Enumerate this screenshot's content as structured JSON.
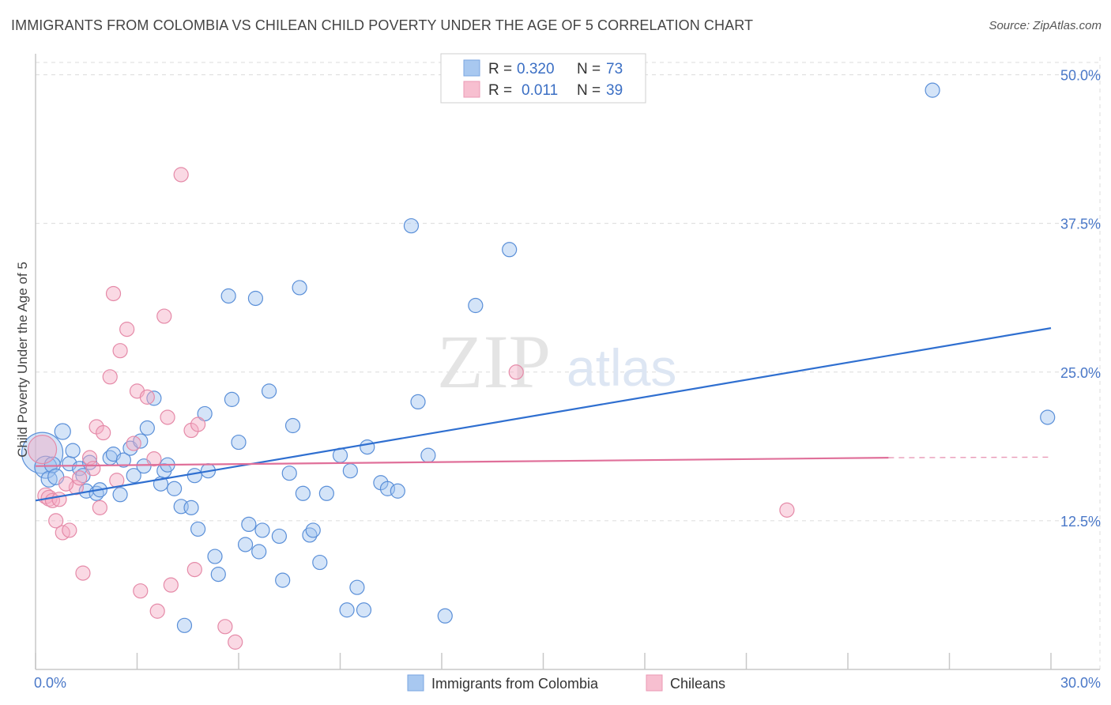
{
  "title": "IMMIGRANTS FROM COLOMBIA VS CHILEAN CHILD POVERTY UNDER THE AGE OF 5 CORRELATION CHART",
  "source": "Source: ZipAtlas.com",
  "watermark": {
    "zip": "ZIP",
    "atlas": "atlas"
  },
  "chart_data": {
    "type": "scatter",
    "title": "IMMIGRANTS FROM COLOMBIA VS CHILEAN CHILD POVERTY UNDER THE AGE OF 5 CORRELATION CHART",
    "xlabel": "",
    "ylabel": "Child Poverty Under the Age of 5",
    "xlim": [
      0,
      30
    ],
    "ylim": [
      0,
      51.5
    ],
    "x_tick_labels": [
      "0.0%",
      "30.0%"
    ],
    "y_ticks": [
      12.5,
      25.0,
      37.5,
      50.0
    ],
    "y_tick_labels": [
      "12.5%",
      "25.0%",
      "37.5%",
      "50.0%"
    ],
    "grid": true,
    "legend": [
      {
        "r_label": "R =",
        "r_value": "0.320",
        "n_label": "N =",
        "n_value": "73",
        "color": "#a8c8f0"
      },
      {
        "r_label": "R =",
        "r_value": "0.011",
        "n_label": "N =",
        "n_value": "39",
        "color": "#f7bfd0"
      }
    ],
    "series": [
      {
        "name": "Immigrants from Colombia",
        "color": "#5a8fd8",
        "trend": {
          "x": [
            0,
            30
          ],
          "y": [
            14.2,
            28.7
          ],
          "color": "#2f6fd0"
        },
        "points": [
          [
            0.2,
            18.2
          ],
          [
            0.3,
            17.0
          ],
          [
            0.4,
            16.0
          ],
          [
            0.5,
            17.2
          ],
          [
            0.6,
            16.2
          ],
          [
            0.8,
            20.0
          ],
          [
            1.0,
            17.3
          ],
          [
            1.1,
            18.4
          ],
          [
            1.3,
            16.9
          ],
          [
            1.4,
            16.3
          ],
          [
            1.5,
            15.0
          ],
          [
            1.6,
            17.4
          ],
          [
            1.8,
            14.8
          ],
          [
            1.9,
            15.1
          ],
          [
            2.2,
            17.8
          ],
          [
            2.3,
            18.1
          ],
          [
            2.5,
            14.7
          ],
          [
            2.6,
            17.6
          ],
          [
            2.8,
            18.6
          ],
          [
            2.9,
            16.3
          ],
          [
            3.1,
            19.2
          ],
          [
            3.2,
            17.1
          ],
          [
            3.3,
            20.3
          ],
          [
            3.5,
            22.8
          ],
          [
            3.7,
            15.6
          ],
          [
            3.8,
            16.7
          ],
          [
            3.9,
            17.2
          ],
          [
            4.1,
            15.2
          ],
          [
            4.3,
            13.7
          ],
          [
            4.4,
            3.7
          ],
          [
            4.6,
            13.6
          ],
          [
            4.7,
            16.3
          ],
          [
            4.8,
            11.8
          ],
          [
            5.0,
            21.5
          ],
          [
            5.1,
            16.7
          ],
          [
            5.3,
            9.5
          ],
          [
            5.4,
            8.0
          ],
          [
            5.7,
            31.4
          ],
          [
            5.8,
            22.7
          ],
          [
            6.0,
            19.1
          ],
          [
            6.2,
            10.5
          ],
          [
            6.3,
            12.2
          ],
          [
            6.5,
            31.2
          ],
          [
            6.6,
            9.9
          ],
          [
            6.7,
            11.7
          ],
          [
            6.9,
            23.4
          ],
          [
            7.2,
            11.2
          ],
          [
            7.3,
            7.5
          ],
          [
            7.5,
            16.5
          ],
          [
            7.6,
            20.5
          ],
          [
            7.8,
            32.1
          ],
          [
            7.9,
            14.8
          ],
          [
            8.1,
            11.3
          ],
          [
            8.2,
            11.7
          ],
          [
            8.4,
            9.0
          ],
          [
            8.6,
            14.8
          ],
          [
            9.0,
            18.0
          ],
          [
            9.2,
            5.0
          ],
          [
            9.3,
            16.7
          ],
          [
            9.5,
            6.9
          ],
          [
            9.7,
            5.0
          ],
          [
            9.8,
            18.7
          ],
          [
            10.2,
            15.7
          ],
          [
            10.4,
            15.2
          ],
          [
            10.7,
            15.0
          ],
          [
            11.1,
            37.3
          ],
          [
            11.3,
            22.5
          ],
          [
            11.6,
            18.0
          ],
          [
            12.1,
            4.5
          ],
          [
            13.0,
            30.6
          ],
          [
            14.0,
            35.3
          ],
          [
            26.5,
            48.7
          ],
          [
            29.9,
            21.2
          ]
        ],
        "radii": [
          26,
          14,
          10,
          10,
          10,
          10,
          9,
          9,
          9,
          9,
          9,
          9,
          9,
          9,
          9,
          9,
          9,
          9,
          9,
          9,
          9,
          9,
          9,
          9,
          9,
          9,
          9,
          9,
          9,
          9,
          9,
          9,
          9,
          9,
          9,
          9,
          9,
          9,
          9,
          9,
          9,
          9,
          9,
          9,
          9,
          9,
          9,
          9,
          9,
          9,
          9,
          9,
          9,
          9,
          9,
          9,
          9,
          9,
          9,
          9,
          9,
          9,
          9,
          9,
          9,
          9,
          9,
          9,
          9,
          9,
          9,
          9,
          9
        ]
      },
      {
        "name": "Chileans",
        "color": "#e58aa8",
        "trend": {
          "x": [
            0,
            25.2
          ],
          "y": [
            17.1,
            17.8
          ],
          "dashed_to": 30,
          "dashed_y": 17.85,
          "color": "#e0709a"
        },
        "points": [
          [
            0.2,
            18.5
          ],
          [
            0.3,
            14.6
          ],
          [
            0.4,
            14.4
          ],
          [
            0.5,
            14.2
          ],
          [
            0.6,
            12.5
          ],
          [
            0.7,
            14.3
          ],
          [
            0.8,
            11.5
          ],
          [
            1.0,
            11.7
          ],
          [
            1.2,
            15.3
          ],
          [
            1.3,
            16.1
          ],
          [
            1.4,
            8.1
          ],
          [
            1.6,
            17.8
          ],
          [
            1.7,
            16.9
          ],
          [
            1.8,
            20.4
          ],
          [
            1.9,
            13.6
          ],
          [
            2.0,
            19.9
          ],
          [
            2.2,
            24.6
          ],
          [
            2.3,
            31.6
          ],
          [
            2.4,
            15.9
          ],
          [
            2.5,
            26.8
          ],
          [
            2.7,
            28.6
          ],
          [
            2.9,
            19.0
          ],
          [
            3.0,
            23.4
          ],
          [
            3.1,
            6.6
          ],
          [
            3.3,
            22.9
          ],
          [
            3.5,
            17.7
          ],
          [
            3.6,
            4.9
          ],
          [
            3.8,
            29.7
          ],
          [
            3.9,
            21.2
          ],
          [
            4.0,
            7.1
          ],
          [
            4.3,
            41.6
          ],
          [
            4.6,
            20.1
          ],
          [
            4.7,
            8.4
          ],
          [
            4.8,
            20.6
          ],
          [
            5.6,
            3.6
          ],
          [
            5.9,
            2.3
          ],
          [
            14.2,
            25.0
          ],
          [
            22.2,
            13.4
          ],
          [
            0.9,
            15.6
          ]
        ],
        "radii": [
          18,
          10,
          10,
          9,
          9,
          9,
          9,
          9,
          9,
          9,
          9,
          9,
          9,
          9,
          9,
          9,
          9,
          9,
          9,
          9,
          9,
          9,
          9,
          9,
          9,
          9,
          9,
          9,
          9,
          9,
          9,
          9,
          9,
          9,
          9,
          9,
          9,
          9,
          9
        ]
      }
    ]
  }
}
